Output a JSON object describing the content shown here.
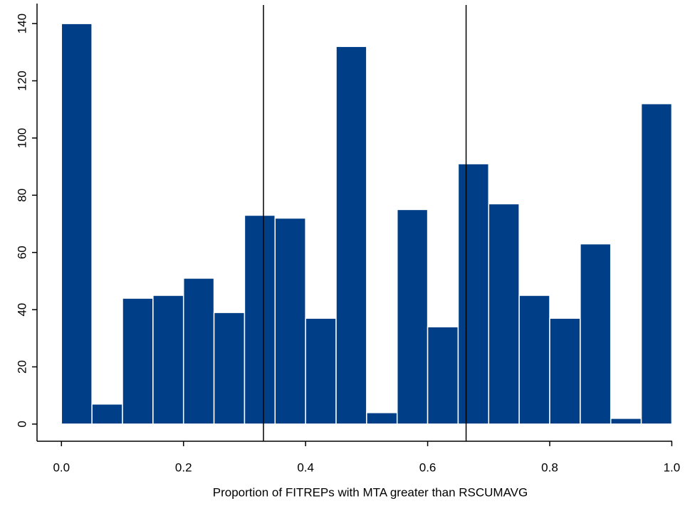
{
  "chart_data": {
    "type": "histogram",
    "x_label": "Proportion of FITREPs with MTA greater than RSCUMAVG",
    "bins": [
      0,
      0.05,
      0.1,
      0.15,
      0.2,
      0.25,
      0.3,
      0.35,
      0.4,
      0.45,
      0.5,
      0.55,
      0.6,
      0.65,
      0.7,
      0.75,
      0.8,
      0.85,
      0.9,
      0.95,
      1.0
    ],
    "values": [
      140,
      7,
      44,
      45,
      51,
      39,
      73,
      72,
      37,
      132,
      4,
      75,
      34,
      91,
      77,
      45,
      37,
      63,
      2,
      112
    ],
    "color": "#003f87",
    "vlines": [
      0.331,
      0.663
    ],
    "xlim": [
      -0.04,
      1.01
    ],
    "ylim": [
      -6,
      147
    ],
    "xticks": [
      {
        "value": 0,
        "label": "0.0"
      },
      {
        "value": 0.2,
        "label": "0.2"
      },
      {
        "value": 0.4,
        "label": "0.4"
      },
      {
        "value": 0.6,
        "label": "0.6"
      },
      {
        "value": 0.8,
        "label": "0.8"
      },
      {
        "value": 1.0,
        "label": "1.0"
      }
    ],
    "yticks": [
      0,
      20,
      40,
      60,
      80,
      100,
      120,
      140
    ]
  }
}
